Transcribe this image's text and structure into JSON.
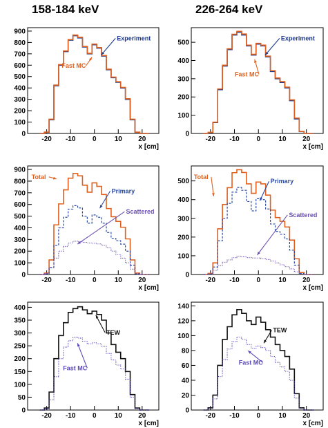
{
  "column_titles": [
    "158-184 keV",
    "226-264 keV"
  ],
  "colors": {
    "experiment": "#1f3a8c",
    "fast_mc": "#e0601e",
    "total": "#e0601e",
    "primary": "#2b4aa0",
    "scattered": "#6a4fb0",
    "tew": "#111111",
    "fast_mc_purple": "#5a48b8"
  },
  "chart_data": [
    {
      "type": "line",
      "id": "r1c1",
      "x_ticks": [
        -20,
        -10,
        0,
        10,
        20
      ],
      "xlim": [
        -28,
        27
      ],
      "y_ticks": [
        0,
        100,
        200,
        300,
        400,
        500,
        600,
        700,
        800,
        900
      ],
      "ylim": [
        0,
        930
      ],
      "xlabel": "x [cm]",
      "series": [
        {
          "name": "Experiment",
          "style": "solid",
          "color": "#1f3a8c",
          "x": [
            -22,
            -20,
            -18,
            -16,
            -14,
            -12,
            -10,
            -8,
            -6,
            -4,
            -2,
            0,
            2,
            4,
            6,
            8,
            10,
            12,
            14,
            16,
            18,
            20,
            22
          ],
          "values": [
            0,
            10,
            120,
            420,
            600,
            720,
            820,
            860,
            840,
            760,
            700,
            780,
            750,
            680,
            560,
            490,
            450,
            400,
            300,
            120,
            10,
            0,
            0
          ]
        },
        {
          "name": "Fast MC",
          "style": "solid",
          "color": "#e0601e",
          "x": [
            -22,
            -20,
            -18,
            -16,
            -14,
            -12,
            -10,
            -8,
            -6,
            -4,
            -2,
            0,
            2,
            4,
            6,
            8,
            10,
            12,
            14,
            16,
            18,
            20,
            22
          ],
          "values": [
            0,
            12,
            125,
            425,
            605,
            725,
            825,
            865,
            845,
            765,
            705,
            785,
            755,
            685,
            565,
            495,
            455,
            405,
            305,
            125,
            12,
            0,
            0
          ]
        }
      ],
      "annotations": [
        "Experiment",
        "Fast MC"
      ]
    },
    {
      "type": "line",
      "id": "r1c2",
      "x_ticks": [
        -20,
        -10,
        0,
        10,
        20
      ],
      "xlim": [
        -28,
        27
      ],
      "y_ticks": [
        0,
        100,
        200,
        300,
        400,
        500
      ],
      "ylim": [
        0,
        580
      ],
      "xlabel": "x [cm]",
      "series": [
        {
          "name": "Experiment",
          "style": "solid",
          "color": "#1f3a8c",
          "x": [
            -22,
            -20,
            -18,
            -16,
            -14,
            -12,
            -10,
            -8,
            -6,
            -4,
            -2,
            0,
            2,
            4,
            6,
            8,
            10,
            12,
            14,
            16,
            18,
            20,
            22
          ],
          "values": [
            0,
            5,
            60,
            240,
            370,
            460,
            540,
            555,
            540,
            480,
            430,
            490,
            480,
            420,
            340,
            300,
            280,
            250,
            180,
            80,
            10,
            0,
            0
          ]
        },
        {
          "name": "Fast MC",
          "style": "solid",
          "color": "#e0601e",
          "x": [
            -22,
            -20,
            -18,
            -16,
            -14,
            -12,
            -10,
            -8,
            -6,
            -4,
            -2,
            0,
            2,
            4,
            6,
            8,
            10,
            12,
            14,
            16,
            18,
            20,
            22
          ],
          "values": [
            0,
            6,
            62,
            244,
            374,
            464,
            544,
            560,
            545,
            484,
            434,
            494,
            484,
            424,
            344,
            304,
            284,
            254,
            184,
            84,
            11,
            0,
            0
          ]
        }
      ],
      "annotations": [
        "Experiment",
        "Fast MC"
      ]
    },
    {
      "type": "line",
      "id": "r2c1",
      "x_ticks": [
        -20,
        -10,
        0,
        10,
        20
      ],
      "xlim": [
        -28,
        27
      ],
      "y_ticks": [
        0,
        100,
        200,
        300,
        400,
        500,
        600,
        700,
        800,
        900
      ],
      "ylim": [
        0,
        930
      ],
      "xlabel": "x [cm]",
      "series": [
        {
          "name": "Total",
          "style": "solid",
          "color": "#e0601e",
          "x": [
            -22,
            -20,
            -18,
            -16,
            -14,
            -12,
            -10,
            -8,
            -6,
            -4,
            -2,
            0,
            2,
            4,
            6,
            8,
            10,
            12,
            14,
            16,
            18,
            20,
            22
          ],
          "values": [
            0,
            12,
            125,
            425,
            605,
            725,
            825,
            865,
            845,
            765,
            705,
            785,
            755,
            685,
            565,
            495,
            455,
            405,
            305,
            125,
            12,
            0,
            0
          ]
        },
        {
          "name": "Primary",
          "style": "dashed",
          "color": "#2b4aa0",
          "x": [
            -22,
            -20,
            -18,
            -16,
            -14,
            -12,
            -10,
            -8,
            -6,
            -4,
            -2,
            0,
            2,
            4,
            6,
            8,
            10,
            12,
            14,
            16,
            18,
            20,
            22
          ],
          "values": [
            0,
            5,
            60,
            250,
            400,
            490,
            560,
            590,
            570,
            500,
            440,
            510,
            490,
            440,
            360,
            310,
            290,
            260,
            200,
            80,
            5,
            0,
            0
          ]
        },
        {
          "name": "Scattered",
          "style": "dotted",
          "color": "#6a4fb0",
          "x": [
            -22,
            -20,
            -18,
            -16,
            -14,
            -12,
            -10,
            -8,
            -6,
            -4,
            -2,
            0,
            2,
            4,
            6,
            8,
            10,
            12,
            14,
            16,
            18,
            20,
            22
          ],
          "values": [
            0,
            8,
            60,
            140,
            200,
            240,
            270,
            285,
            280,
            275,
            270,
            268,
            262,
            250,
            230,
            200,
            170,
            140,
            100,
            45,
            8,
            0,
            0
          ]
        }
      ],
      "annotations": [
        "Total",
        "Primary",
        "Scattered"
      ]
    },
    {
      "type": "line",
      "id": "r2c2",
      "x_ticks": [
        -20,
        -10,
        0,
        10,
        20
      ],
      "xlim": [
        -28,
        27
      ],
      "y_ticks": [
        0,
        100,
        200,
        300,
        400,
        500
      ],
      "ylim": [
        0,
        580
      ],
      "xlabel": "x [cm]",
      "series": [
        {
          "name": "Total",
          "style": "solid",
          "color": "#e0601e",
          "x": [
            -22,
            -20,
            -18,
            -16,
            -14,
            -12,
            -10,
            -8,
            -6,
            -4,
            -2,
            0,
            2,
            4,
            6,
            8,
            10,
            12,
            14,
            16,
            18,
            20,
            22
          ],
          "values": [
            0,
            6,
            62,
            244,
            374,
            464,
            544,
            560,
            545,
            484,
            434,
            494,
            484,
            424,
            344,
            304,
            284,
            254,
            184,
            84,
            11,
            0,
            0
          ]
        },
        {
          "name": "Primary",
          "style": "dashed",
          "color": "#2b4aa0",
          "x": [
            -22,
            -20,
            -18,
            -16,
            -14,
            -12,
            -10,
            -8,
            -6,
            -4,
            -2,
            0,
            2,
            4,
            6,
            8,
            10,
            12,
            14,
            16,
            18,
            20,
            22
          ],
          "values": [
            0,
            3,
            40,
            180,
            300,
            380,
            440,
            465,
            450,
            390,
            340,
            405,
            400,
            350,
            270,
            230,
            215,
            190,
            130,
            50,
            5,
            0,
            0
          ]
        },
        {
          "name": "Scattered",
          "style": "dotted",
          "color": "#6a4fb0",
          "x": [
            -22,
            -20,
            -18,
            -16,
            -14,
            -12,
            -10,
            -8,
            -6,
            -4,
            -2,
            0,
            2,
            4,
            6,
            8,
            10,
            12,
            14,
            16,
            18,
            20,
            22
          ],
          "values": [
            0,
            3,
            22,
            48,
            65,
            78,
            90,
            98,
            95,
            90,
            88,
            88,
            85,
            80,
            72,
            62,
            52,
            42,
            30,
            14,
            3,
            0,
            0
          ]
        }
      ],
      "annotations": [
        "Total",
        "Primary",
        "Scattered"
      ]
    },
    {
      "type": "line",
      "id": "r3c1",
      "x_ticks": [
        -20,
        -10,
        0,
        10,
        20
      ],
      "xlim": [
        -28,
        27
      ],
      "y_ticks": [
        0,
        50,
        100,
        150,
        200,
        250,
        300,
        350,
        400
      ],
      "ylim": [
        0,
        420
      ],
      "xlabel": "x [cm]",
      "series": [
        {
          "name": "TEW",
          "style": "solid",
          "color": "#111111",
          "x": [
            -22,
            -20,
            -18,
            -16,
            -14,
            -12,
            -10,
            -8,
            -6,
            -4,
            -2,
            0,
            2,
            4,
            6,
            8,
            10,
            12,
            14,
            16,
            18,
            20,
            22
          ],
          "values": [
            0,
            8,
            70,
            200,
            290,
            340,
            380,
            395,
            402,
            390,
            375,
            385,
            372,
            350,
            300,
            255,
            225,
            200,
            150,
            60,
            8,
            0,
            0
          ]
        },
        {
          "name": "Fast MC",
          "style": "dotted",
          "color": "#5a48b8",
          "x": [
            -22,
            -20,
            -18,
            -16,
            -14,
            -12,
            -10,
            -8,
            -6,
            -4,
            -2,
            0,
            2,
            4,
            6,
            8,
            10,
            12,
            14,
            16,
            18,
            20,
            22
          ],
          "values": [
            0,
            4,
            40,
            130,
            200,
            245,
            270,
            283,
            280,
            268,
            258,
            262,
            258,
            248,
            220,
            195,
            175,
            160,
            120,
            50,
            5,
            0,
            0
          ]
        }
      ],
      "annotations": [
        "TEW",
        "Fast MC"
      ]
    },
    {
      "type": "line",
      "id": "r3c2",
      "x_ticks": [
        -20,
        -10,
        0,
        10,
        20
      ],
      "xlim": [
        -28,
        27
      ],
      "y_ticks": [
        0,
        20,
        40,
        60,
        80,
        100,
        120,
        140
      ],
      "ylim": [
        0,
        145
      ],
      "xlabel": "x [cm]",
      "series": [
        {
          "name": "TEW",
          "style": "solid",
          "color": "#111111",
          "x": [
            -22,
            -20,
            -18,
            -16,
            -14,
            -12,
            -10,
            -8,
            -6,
            -4,
            -2,
            0,
            2,
            4,
            6,
            8,
            10,
            12,
            14,
            16,
            18,
            20,
            22
          ],
          "values": [
            0,
            3,
            20,
            60,
            95,
            112,
            128,
            135,
            130,
            120,
            115,
            125,
            118,
            108,
            98,
            88,
            80,
            72,
            55,
            22,
            3,
            0,
            0
          ]
        },
        {
          "name": "Fast MC",
          "style": "dotted",
          "color": "#5a48b8",
          "x": [
            -22,
            -20,
            -18,
            -16,
            -14,
            -12,
            -10,
            -8,
            -6,
            -4,
            -2,
            0,
            2,
            4,
            6,
            8,
            10,
            12,
            14,
            16,
            18,
            20,
            22
          ],
          "values": [
            0,
            2,
            15,
            45,
            68,
            82,
            92,
            98,
            95,
            88,
            83,
            86,
            84,
            80,
            72,
            64,
            58,
            52,
            40,
            16,
            2,
            0,
            0
          ]
        }
      ],
      "annotations": [
        "TEW",
        "Fast MC"
      ]
    }
  ]
}
